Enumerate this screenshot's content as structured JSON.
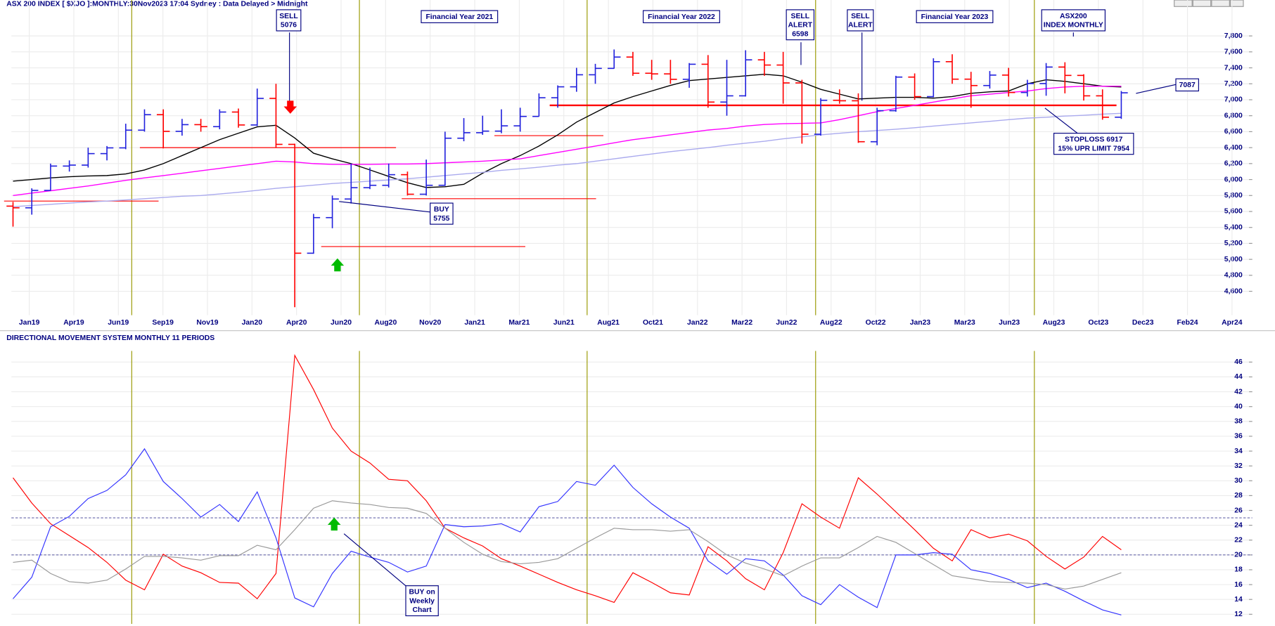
{
  "chart_data": [
    {
      "type": "ohlc",
      "title": "ASX 200 INDEX [ $XJO ]:MONTHLY:30Nov2023 17:04 Sydney : Data Delayed > Midnight",
      "x_labels": [
        "Jan19",
        "Apr19",
        "Jun19",
        "Sep19",
        "Nov19",
        "Jan20",
        "Apr20",
        "Jun20",
        "Aug20",
        "Nov20",
        "Jan21",
        "Mar21",
        "Jun21",
        "Aug21",
        "Oct21",
        "Jan22",
        "Mar22",
        "Jun22",
        "Aug22",
        "Oct22",
        "Jan23",
        "Mar23",
        "Jun23",
        "Aug23",
        "Oct23",
        "Dec23",
        "Feb24",
        "Apr24"
      ],
      "bars": {
        "open": [
          5667,
          5646,
          5864,
          6169,
          6181,
          6325,
          6397,
          6619,
          6813,
          6604,
          6688,
          6663,
          6846,
          6684,
          7017,
          6441,
          5077,
          5523,
          5756,
          5898,
          5928,
          6061,
          5816,
          5928,
          6518,
          6587,
          6607,
          6673,
          6791,
          7025,
          7162,
          7313,
          7393,
          7535,
          7332,
          7324,
          7256,
          7445,
          6971,
          7049,
          7500,
          7435,
          7211,
          6568,
          6993,
          6987,
          6474,
          6863,
          7284,
          7039,
          7477,
          7258,
          7178,
          7309,
          7091,
          7203,
          7410,
          7305,
          7049,
          6781
        ],
        "high": [
          5720,
          5890,
          6200,
          6240,
          6400,
          6420,
          6700,
          6880,
          6880,
          6760,
          6760,
          6880,
          6890,
          7140,
          7200,
          6450,
          5570,
          5800,
          6200,
          6150,
          6200,
          6100,
          6250,
          6600,
          6770,
          6800,
          6880,
          6900,
          7080,
          7180,
          7400,
          7450,
          7630,
          7600,
          7500,
          7500,
          7460,
          7560,
          7500,
          7620,
          7600,
          7600,
          7250,
          7020,
          7130,
          7080,
          6900,
          7300,
          7330,
          7520,
          7570,
          7350,
          7360,
          7400,
          7250,
          7460,
          7470,
          7320,
          7130,
          7110
        ],
        "low": [
          5410,
          5560,
          5860,
          6100,
          6150,
          6240,
          6380,
          6600,
          6390,
          6550,
          6600,
          6630,
          6650,
          6670,
          6400,
          4400,
          5070,
          5390,
          5700,
          5880,
          5900,
          5800,
          5800,
          5920,
          6480,
          6560,
          6580,
          6600,
          6790,
          6900,
          7100,
          7200,
          7390,
          7300,
          7250,
          7200,
          7150,
          6900,
          6800,
          7040,
          7300,
          6950,
          6450,
          6550,
          6950,
          6460,
          6430,
          6850,
          7000,
          7030,
          7200,
          6900,
          7140,
          7040,
          7040,
          7050,
          7080,
          6990,
          6750,
          6760
        ],
        "close": [
          5646,
          5864,
          6169,
          6181,
          6325,
          6397,
          6619,
          6813,
          6604,
          6688,
          6663,
          6846,
          6684,
          7017,
          6441,
          5077,
          5523,
          5756,
          5898,
          5928,
          6061,
          5816,
          5928,
          6518,
          6587,
          6607,
          6673,
          6791,
          7025,
          7162,
          7313,
          7393,
          7535,
          7332,
          7324,
          7256,
          7445,
          6971,
          7049,
          7500,
          7435,
          7211,
          6568,
          6993,
          6987,
          6474,
          6863,
          7284,
          7039,
          7477,
          7258,
          7178,
          7309,
          7091,
          7203,
          7410,
          7305,
          7049,
          6781,
          7087
        ]
      },
      "up_color": "#2222dd",
      "down_color": "#ff0000",
      "series": [
        {
          "color": "#000000",
          "values": [
            5980,
            6000,
            6020,
            6035,
            6045,
            6050,
            6070,
            6120,
            6200,
            6300,
            6400,
            6500,
            6580,
            6660,
            6680,
            6520,
            6330,
            6260,
            6200,
            6120,
            6040,
            5960,
            5900,
            5910,
            5940,
            6080,
            6200,
            6300,
            6420,
            6560,
            6720,
            6840,
            6960,
            7040,
            7110,
            7180,
            7240,
            7260,
            7280,
            7300,
            7320,
            7300,
            7220,
            7130,
            7070,
            7010,
            7020,
            7030,
            7030,
            7020,
            7040,
            7080,
            7100,
            7110,
            7200,
            7250,
            7230,
            7200,
            7170,
            7160
          ]
        },
        {
          "color": "#ff00ff",
          "values": [
            5800,
            5830,
            5860,
            5890,
            5920,
            5955,
            5990,
            6020,
            6050,
            6080,
            6110,
            6140,
            6170,
            6200,
            6230,
            6220,
            6200,
            6190,
            6190,
            6190,
            6195,
            6195,
            6200,
            6210,
            6220,
            6230,
            6245,
            6260,
            6300,
            6340,
            6380,
            6420,
            6460,
            6500,
            6530,
            6560,
            6590,
            6620,
            6640,
            6670,
            6690,
            6700,
            6705,
            6710,
            6750,
            6800,
            6850,
            6890,
            6930,
            6970,
            7010,
            7050,
            7070,
            7090,
            7110,
            7140,
            7160,
            7170,
            7170,
            7170
          ]
        },
        {
          "color": "#aaaaee",
          "values": [
            5660,
            5675,
            5690,
            5705,
            5720,
            5730,
            5745,
            5760,
            5775,
            5790,
            5800,
            5820,
            5840,
            5865,
            5890,
            5910,
            5930,
            5950,
            5965,
            5980,
            5995,
            6010,
            6030,
            6050,
            6070,
            6090,
            6115,
            6135,
            6155,
            6180,
            6200,
            6230,
            6260,
            6290,
            6320,
            6350,
            6375,
            6400,
            6430,
            6455,
            6480,
            6510,
            6535,
            6560,
            6580,
            6600,
            6615,
            6630,
            6650,
            6670,
            6690,
            6710,
            6730,
            6750,
            6770,
            6780,
            6795,
            6805,
            6820,
            6830
          ]
        }
      ],
      "levels": [
        {
          "value": 5730,
          "color": "#ff0000"
        },
        {
          "value": 6400,
          "color": "#ff0000"
        },
        {
          "value": 5760,
          "color": "#ff0000"
        },
        {
          "value": 5160,
          "color": "#ff0000"
        },
        {
          "value": 6550,
          "color": "#ff0000"
        },
        {
          "value": 6930,
          "color": "#ff0000"
        }
      ],
      "ylim": [
        4300,
        8250
      ],
      "yticks": [
        {
          "value": 4600,
          "label": "4,600"
        },
        {
          "value": 4800,
          "label": "4,800"
        },
        {
          "value": 5000,
          "label": "5,000"
        },
        {
          "value": 5200,
          "label": "5,200"
        },
        {
          "value": 5400,
          "label": "5,400"
        },
        {
          "value": 5600,
          "label": "5,600"
        },
        {
          "value": 5800,
          "label": "5,800"
        },
        {
          "value": 6000,
          "label": "6,000"
        },
        {
          "value": 6200,
          "label": "6,200"
        },
        {
          "value": 6400,
          "label": "6,400"
        },
        {
          "value": 6600,
          "label": "6,600"
        },
        {
          "value": 6800,
          "label": "6,800"
        },
        {
          "value": 7000,
          "label": "7,000"
        },
        {
          "value": 7200,
          "label": "7,200"
        },
        {
          "value": 7400,
          "label": "7,400"
        },
        {
          "value": 7600,
          "label": "7,600"
        },
        {
          "value": 7800,
          "label": "7,800"
        }
      ],
      "grid": true,
      "annotations": [
        {
          "lines": [
            "SELL",
            "5076"
          ]
        },
        {
          "lines": [
            "Financial Year 2021"
          ]
        },
        {
          "lines": [
            "Financial Year 2022"
          ]
        },
        {
          "lines": [
            "SELL",
            "ALERT",
            "6598"
          ]
        },
        {
          "lines": [
            "SELL",
            "ALERT"
          ]
        },
        {
          "lines": [
            "Financial Year 2023"
          ]
        },
        {
          "lines": [
            "ASX200",
            "INDEX MONTHLY"
          ]
        },
        {
          "lines": [
            "7087"
          ]
        },
        {
          "lines": [
            "BUY",
            "5755"
          ]
        },
        {
          "lines": [
            "STOPLOSS 6917",
            "15% UPR LIMIT 7954"
          ]
        }
      ]
    },
    {
      "type": "line",
      "title": "DIRECTIONAL MOVEMENT SYSTEM MONTHLY 11 PERIODS",
      "series": [
        {
          "color": "#ff0000",
          "values": [
            30.4,
            27.0,
            24.2,
            22.6,
            21.0,
            19.0,
            16.6,
            15.3,
            20.1,
            18.5,
            17.6,
            16.3,
            16.2,
            14.1,
            17.5,
            46.9,
            42.3,
            37.1,
            34.0,
            32.4,
            30.2,
            30.0,
            27.3,
            23.6,
            22.3,
            21.2,
            19.5,
            18.5,
            17.4,
            16.3,
            15.3,
            14.5,
            13.6,
            17.6,
            16.3,
            14.9,
            14.6,
            21.1,
            19.2,
            16.8,
            15.3,
            20.3,
            26.9,
            25.1,
            23.6,
            30.4,
            28.2,
            25.8,
            23.4,
            20.9,
            19.2,
            23.4,
            22.3,
            22.8,
            21.9,
            19.8,
            18.1,
            19.7,
            22.5,
            20.7
          ]
        },
        {
          "color": "#3333ff",
          "values": [
            14.1,
            17.0,
            23.8,
            25.2,
            27.6,
            28.7,
            30.8,
            34.3,
            29.9,
            27.6,
            25.1,
            26.8,
            24.5,
            28.5,
            22.3,
            14.2,
            13.0,
            17.5,
            20.5,
            19.7,
            19.0,
            17.7,
            18.5,
            24.1,
            23.8,
            23.9,
            24.2,
            23.1,
            26.5,
            27.2,
            29.9,
            29.4,
            32.1,
            29.1,
            26.9,
            25.1,
            23.6,
            19.2,
            17.4,
            19.5,
            19.2,
            17.3,
            14.5,
            13.3,
            16.0,
            14.3,
            12.9,
            20.0,
            20.0,
            20.3,
            20.1,
            18.0,
            17.5,
            16.7,
            15.6,
            16.2,
            15.1,
            13.8,
            12.6,
            11.9
          ]
        },
        {
          "color": "#999999",
          "values": [
            19.0,
            19.3,
            17.5,
            16.4,
            16.2,
            16.6,
            18.1,
            19.8,
            19.8,
            19.6,
            19.3,
            19.9,
            19.9,
            21.3,
            20.7,
            23.4,
            26.3,
            27.3,
            27.0,
            26.8,
            26.4,
            26.3,
            25.6,
            23.6,
            21.7,
            20.1,
            19.1,
            18.8,
            19.0,
            19.5,
            20.9,
            22.3,
            23.6,
            23.4,
            23.4,
            23.2,
            23.4,
            21.8,
            20.0,
            18.9,
            18.1,
            17.2,
            18.5,
            19.6,
            19.6,
            21.0,
            22.5,
            21.7,
            20.2,
            18.7,
            17.2,
            16.8,
            16.4,
            16.3,
            16.2,
            16.0,
            15.4,
            15.8,
            16.7,
            17.6
          ]
        }
      ],
      "reference_lines": [
        {
          "value": 25,
          "color": "#6666aa"
        },
        {
          "value": 20,
          "color": "#6666aa"
        }
      ],
      "ylim": [
        10.7,
        47.5
      ],
      "yticks": [
        12,
        14,
        16,
        18,
        20,
        22,
        24,
        26,
        28,
        30,
        32,
        34,
        36,
        38,
        40,
        42,
        44,
        46
      ],
      "grid": true,
      "annotations": [
        {
          "lines": [
            "BUY on",
            "Weekly",
            "Chart"
          ]
        }
      ]
    }
  ]
}
